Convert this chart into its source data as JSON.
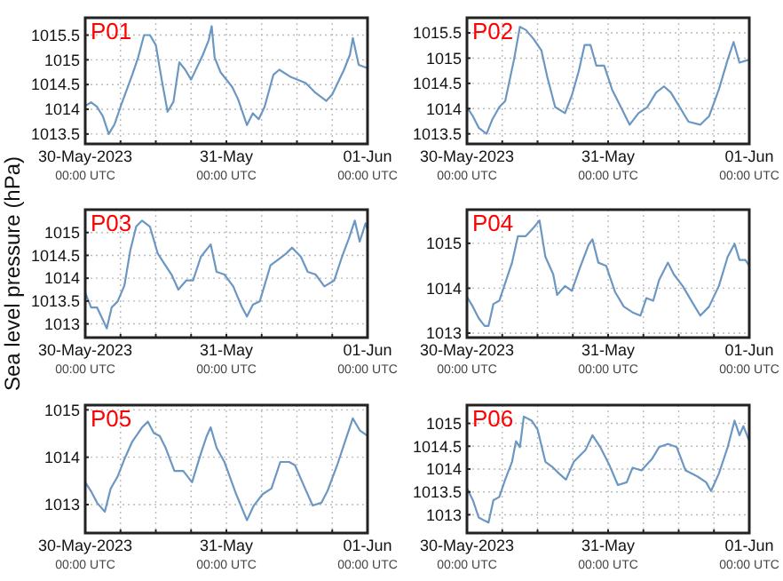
{
  "chart_data": [
    {
      "type": "line",
      "title": "P01",
      "grid": true,
      "xlim": [
        "2023-05-30T00:00",
        "2023-06-01T00:00"
      ],
      "xticks": [
        {
          "value": "2023-05-30T00:00",
          "label": "30-May-2023\n00:00 UTC"
        },
        {
          "value": "2023-05-30T06:00",
          "label": null
        },
        {
          "value": "2023-05-30T12:00",
          "label": null
        },
        {
          "value": "2023-05-30T18:00",
          "label": null
        },
        {
          "value": "2023-05-31T00:00",
          "label": "31-May\n00:00 UTC"
        },
        {
          "value": "2023-05-31T06:00",
          "label": null
        },
        {
          "value": "2023-05-31T12:00",
          "label": null
        },
        {
          "value": "2023-05-31T18:00",
          "label": null
        },
        {
          "value": "2023-06-01T00:00",
          "label": "01-Jun\n00:00 UTC"
        }
      ],
      "ylim": [
        1013.3,
        1015.85
      ],
      "yticks": [
        1013.5,
        1014,
        1014.5,
        1015,
        1015.5
      ],
      "series": [
        {
          "color": "#6b97c2",
          "x": [
            "2023-05-30T00:00",
            "2023-05-30T01:00",
            "2023-05-30T02:00",
            "2023-05-30T03:00",
            "2023-05-30T04:00",
            "2023-05-30T05:00",
            "2023-05-30T06:00",
            "2023-05-30T08:00",
            "2023-05-30T09:00",
            "2023-05-30T10:00",
            "2023-05-30T11:00",
            "2023-05-30T12:00",
            "2023-05-30T13:00",
            "2023-05-30T14:00",
            "2023-05-30T15:00",
            "2023-05-30T16:00",
            "2023-05-30T17:00",
            "2023-05-30T18:00",
            "2023-05-30T20:00",
            "2023-05-30T21:00",
            "2023-05-30T21:30",
            "2023-05-30T22:00",
            "2023-05-30T23:00",
            "2023-05-31T01:00",
            "2023-05-31T02:00",
            "2023-05-31T03:30",
            "2023-05-31T04:30",
            "2023-05-31T05:30",
            "2023-05-31T06:30",
            "2023-05-31T08:00",
            "2023-05-31T09:00",
            "2023-05-31T11:00",
            "2023-05-31T13:30",
            "2023-05-31T15:00",
            "2023-05-31T17:00",
            "2023-05-31T18:00",
            "2023-05-31T20:00",
            "2023-05-31T21:00",
            "2023-05-31T21:30",
            "2023-05-31T22:30",
            "2023-06-01T00:00"
          ],
          "values": [
            1014.07,
            1014.14,
            1014.05,
            1013.86,
            1013.5,
            1013.7,
            1014.05,
            1014.7,
            1015.05,
            1015.5,
            1015.5,
            1015.3,
            1014.6,
            1013.95,
            1014.15,
            1014.95,
            1014.8,
            1014.6,
            1015.1,
            1015.4,
            1015.68,
            1015.05,
            1014.75,
            1014.45,
            1014.2,
            1013.68,
            1013.92,
            1013.8,
            1014.05,
            1014.7,
            1014.8,
            1014.65,
            1014.53,
            1014.35,
            1014.17,
            1014.3,
            1014.8,
            1015.1,
            1015.44,
            1014.9,
            1014.83
          ]
        }
      ]
    },
    {
      "type": "line",
      "title": "P02",
      "grid": true,
      "xlim": [
        "2023-05-30T00:00",
        "2023-06-01T00:00"
      ],
      "xticks": [
        {
          "value": "2023-05-30T00:00",
          "label": "30-May-2023\n00:00 UTC"
        },
        {
          "value": "2023-05-30T06:00",
          "label": null
        },
        {
          "value": "2023-05-30T12:00",
          "label": null
        },
        {
          "value": "2023-05-30T18:00",
          "label": null
        },
        {
          "value": "2023-05-31T00:00",
          "label": "31-May\n00:00 UTC"
        },
        {
          "value": "2023-05-31T06:00",
          "label": null
        },
        {
          "value": "2023-05-31T12:00",
          "label": null
        },
        {
          "value": "2023-05-31T18:00",
          "label": null
        },
        {
          "value": "2023-06-01T00:00",
          "label": "01-Jun\n00:00 UTC"
        }
      ],
      "ylim": [
        1013.3,
        1015.8
      ],
      "yticks": [
        1013.5,
        1014,
        1014.5,
        1015,
        1015.5
      ],
      "series": [
        {
          "color": "#6b97c2",
          "x": [
            "2023-05-30T00:00",
            "2023-05-30T01:00",
            "2023-05-30T02:00",
            "2023-05-30T03:20",
            "2023-05-30T04:20",
            "2023-05-30T05:30",
            "2023-05-30T06:30",
            "2023-05-30T08:00",
            "2023-05-30T09:00",
            "2023-05-30T10:00",
            "2023-05-30T11:20",
            "2023-05-30T12:40",
            "2023-05-30T13:40",
            "2023-05-30T15:00",
            "2023-05-30T16:40",
            "2023-05-30T17:50",
            "2023-05-30T19:00",
            "2023-05-30T20:00",
            "2023-05-30T21:00",
            "2023-05-30T22:00",
            "2023-05-30T23:20",
            "2023-05-31T00:40",
            "2023-05-31T02:10",
            "2023-05-31T03:40",
            "2023-05-31T05:10",
            "2023-05-31T06:40",
            "2023-05-31T08:10",
            "2023-05-31T09:30",
            "2023-05-31T10:40",
            "2023-05-31T12:10",
            "2023-05-31T13:40",
            "2023-05-31T15:40",
            "2023-05-31T17:10",
            "2023-05-31T18:50",
            "2023-05-31T20:20",
            "2023-05-31T21:20",
            "2023-05-31T22:20",
            "2023-06-01T00:00"
          ],
          "values": [
            1014.03,
            1013.85,
            1013.62,
            1013.5,
            1013.79,
            1014.03,
            1014.15,
            1014.97,
            1015.62,
            1015.56,
            1015.38,
            1015.15,
            1014.62,
            1014.03,
            1013.91,
            1014.26,
            1014.74,
            1015.26,
            1015.26,
            1014.85,
            1014.85,
            1014.38,
            1014.03,
            1013.68,
            1013.91,
            1014.03,
            1014.32,
            1014.44,
            1014.32,
            1014.03,
            1013.74,
            1013.68,
            1013.85,
            1014.38,
            1014.97,
            1015.32,
            1014.91,
            1014.97
          ]
        }
      ]
    },
    {
      "type": "line",
      "title": "P03",
      "ylabel": "Sea level pressure (hPa)",
      "grid": true,
      "xlim": [
        "2023-05-30T00:00",
        "2023-06-01T00:00"
      ],
      "xticks": [
        {
          "value": "2023-05-30T00:00",
          "label": "30-May-2023\n00:00 UTC"
        },
        {
          "value": "2023-05-30T06:00",
          "label": null
        },
        {
          "value": "2023-05-30T12:00",
          "label": null
        },
        {
          "value": "2023-05-30T18:00",
          "label": null
        },
        {
          "value": "2023-05-31T00:00",
          "label": "31-May\n00:00 UTC"
        },
        {
          "value": "2023-05-31T06:00",
          "label": null
        },
        {
          "value": "2023-05-31T12:00",
          "label": null
        },
        {
          "value": "2023-05-31T18:00",
          "label": null
        },
        {
          "value": "2023-06-01T00:00",
          "label": "01-Jun\n00:00 UTC"
        }
      ],
      "ylim": [
        1012.7,
        1015.5
      ],
      "yticks": [
        1013,
        1013.5,
        1014,
        1014.5,
        1015
      ],
      "series": [
        {
          "color": "#6b97c2",
          "x": [
            "2023-05-30T00:00",
            "2023-05-30T01:00",
            "2023-05-30T02:00",
            "2023-05-30T03:00",
            "2023-05-30T03:40",
            "2023-05-30T04:30",
            "2023-05-30T05:30",
            "2023-05-30T06:40",
            "2023-05-30T07:40",
            "2023-05-30T08:40",
            "2023-05-30T09:40",
            "2023-05-30T11:00",
            "2023-05-30T12:20",
            "2023-05-30T13:20",
            "2023-05-30T14:40",
            "2023-05-30T15:50",
            "2023-05-30T17:10",
            "2023-05-30T18:20",
            "2023-05-30T19:40",
            "2023-05-30T21:20",
            "2023-05-30T22:20",
            "2023-05-30T23:40",
            "2023-05-31T01:10",
            "2023-05-31T02:40",
            "2023-05-31T03:30",
            "2023-05-31T04:30",
            "2023-05-31T05:40",
            "2023-05-31T07:30",
            "2023-05-31T08:50",
            "2023-05-31T10:10",
            "2023-05-31T11:10",
            "2023-05-31T12:40",
            "2023-05-31T13:50",
            "2023-05-31T15:10",
            "2023-05-31T16:40",
            "2023-05-31T18:20",
            "2023-05-31T19:40",
            "2023-05-31T20:50",
            "2023-05-31T21:50",
            "2023-05-31T22:40",
            "2023-05-31T23:40",
            "2023-06-01T00:00"
          ],
          "values": [
            1013.68,
            1013.36,
            1013.36,
            1013.09,
            1012.9,
            1013.36,
            1013.49,
            1013.84,
            1014.61,
            1015.13,
            1015.26,
            1015.13,
            1014.54,
            1014.34,
            1014.08,
            1013.75,
            1013.95,
            1013.95,
            1014.47,
            1014.74,
            1014.14,
            1014.08,
            1013.82,
            1013.36,
            1013.16,
            1013.42,
            1013.49,
            1014.28,
            1014.41,
            1014.54,
            1014.67,
            1014.47,
            1014.14,
            1014.08,
            1013.82,
            1013.95,
            1014.47,
            1014.87,
            1015.26,
            1014.8,
            1015.2,
            1015.07
          ]
        }
      ]
    },
    {
      "type": "line",
      "title": "P04",
      "grid": true,
      "xlim": [
        "2023-05-30T00:00",
        "2023-06-01T00:00"
      ],
      "xticks": [
        {
          "value": "2023-05-30T00:00",
          "label": "30-May-2023\n00:00 UTC"
        },
        {
          "value": "2023-05-30T06:00",
          "label": null
        },
        {
          "value": "2023-05-30T12:00",
          "label": null
        },
        {
          "value": "2023-05-30T18:00",
          "label": null
        },
        {
          "value": "2023-05-31T00:00",
          "label": "31-May\n00:00 UTC"
        },
        {
          "value": "2023-05-31T06:00",
          "label": null
        },
        {
          "value": "2023-05-31T12:00",
          "label": null
        },
        {
          "value": "2023-05-31T18:00",
          "label": null
        },
        {
          "value": "2023-06-01T00:00",
          "label": "01-Jun\n00:00 UTC"
        }
      ],
      "ylim": [
        1012.9,
        1015.75
      ],
      "yticks": [
        1013,
        1014,
        1015
      ],
      "series": [
        {
          "color": "#6b97c2",
          "x": [
            "2023-05-30T00:00",
            "2023-05-30T01:00",
            "2023-05-30T02:00",
            "2023-05-30T03:00",
            "2023-05-30T03:40",
            "2023-05-30T04:30",
            "2023-05-30T05:30",
            "2023-05-30T06:40",
            "2023-05-30T07:40",
            "2023-05-30T08:40",
            "2023-05-30T10:00",
            "2023-05-30T11:20",
            "2023-05-30T12:20",
            "2023-05-30T13:20",
            "2023-05-30T14:40",
            "2023-05-30T15:20",
            "2023-05-30T16:40",
            "2023-05-30T17:50",
            "2023-05-30T19:10",
            "2023-05-30T20:40",
            "2023-05-30T21:20",
            "2023-05-30T22:20",
            "2023-05-30T23:40",
            "2023-05-31T01:10",
            "2023-05-31T02:40",
            "2023-05-31T04:10",
            "2023-05-31T05:30",
            "2023-05-31T06:30",
            "2023-05-31T07:40",
            "2023-05-31T08:40",
            "2023-05-31T10:10",
            "2023-05-31T11:10",
            "2023-05-31T12:40",
            "2023-05-31T14:10",
            "2023-05-31T15:40",
            "2023-05-31T17:10",
            "2023-05-31T18:50",
            "2023-05-31T20:20",
            "2023-05-31T21:30",
            "2023-05-31T22:20",
            "2023-05-31T23:20",
            "2023-06-01T00:00"
          ],
          "values": [
            1013.81,
            1013.59,
            1013.33,
            1013.16,
            1013.16,
            1013.65,
            1013.72,
            1014.18,
            1014.57,
            1015.16,
            1015.16,
            1015.35,
            1015.51,
            1014.7,
            1014.31,
            1013.85,
            1014.05,
            1013.94,
            1014.44,
            1014.96,
            1015.09,
            1014.57,
            1014.5,
            1013.92,
            1013.59,
            1013.46,
            1013.39,
            1013.78,
            1013.72,
            1014.18,
            1014.57,
            1014.31,
            1014.05,
            1013.72,
            1013.39,
            1013.59,
            1014.05,
            1014.7,
            1014.99,
            1014.63,
            1014.63,
            1014.5
          ]
        }
      ]
    },
    {
      "type": "line",
      "title": "P05",
      "grid": true,
      "xlim": [
        "2023-05-30T00:00",
        "2023-06-01T00:00"
      ],
      "xticks": [
        {
          "value": "2023-05-30T00:00",
          "label": "30-May-2023\n00:00 UTC"
        },
        {
          "value": "2023-05-30T06:00",
          "label": null
        },
        {
          "value": "2023-05-30T12:00",
          "label": null
        },
        {
          "value": "2023-05-30T18:00",
          "label": null
        },
        {
          "value": "2023-05-31T00:00",
          "label": "31-May\n00:00 UTC"
        },
        {
          "value": "2023-05-31T06:00",
          "label": null
        },
        {
          "value": "2023-05-31T12:00",
          "label": null
        },
        {
          "value": "2023-05-31T18:00",
          "label": null
        },
        {
          "value": "2023-06-01T00:00",
          "label": "01-Jun\n00:00 UTC"
        }
      ],
      "ylim": [
        1012.4,
        1015.1
      ],
      "yticks": [
        1013,
        1014,
        1015
      ],
      "series": [
        {
          "color": "#6b97c2",
          "x": [
            "2023-05-30T00:00",
            "2023-05-30T01:00",
            "2023-05-30T02:00",
            "2023-05-30T03:20",
            "2023-05-30T04:20",
            "2023-05-30T05:30",
            "2023-05-30T06:40",
            "2023-05-30T08:00",
            "2023-05-30T09:40",
            "2023-05-30T10:40",
            "2023-05-30T11:40",
            "2023-05-30T12:40",
            "2023-05-30T13:40",
            "2023-05-30T15:10",
            "2023-05-30T16:40",
            "2023-05-30T18:10",
            "2023-05-30T19:40",
            "2023-05-30T20:40",
            "2023-05-30T21:20",
            "2023-05-30T22:20",
            "2023-05-30T23:40",
            "2023-05-31T01:40",
            "2023-05-31T03:30",
            "2023-05-31T04:40",
            "2023-05-31T06:10",
            "2023-05-31T07:40",
            "2023-05-31T09:10",
            "2023-05-31T10:40",
            "2023-05-31T11:40",
            "2023-05-31T13:10",
            "2023-05-31T14:40",
            "2023-05-31T16:10",
            "2023-05-31T17:10",
            "2023-05-31T18:50",
            "2023-05-31T20:20",
            "2023-05-31T21:30",
            "2023-05-31T22:40",
            "2023-06-01T00:00"
          ],
          "values": [
            1013.47,
            1013.28,
            1013.04,
            1012.85,
            1013.34,
            1013.59,
            1013.96,
            1014.33,
            1014.63,
            1014.75,
            1014.51,
            1014.45,
            1014.2,
            1013.71,
            1013.71,
            1013.47,
            1014.08,
            1014.45,
            1014.63,
            1014.2,
            1013.9,
            1013.22,
            1012.67,
            1012.98,
            1013.22,
            1013.34,
            1013.9,
            1013.9,
            1013.83,
            1013.4,
            1012.98,
            1013.04,
            1013.28,
            1013.83,
            1014.39,
            1014.82,
            1014.57,
            1014.45
          ]
        }
      ]
    },
    {
      "type": "line",
      "title": "P06",
      "grid": true,
      "xlim": [
        "2023-05-30T00:00",
        "2023-06-01T00:00"
      ],
      "xticks": [
        {
          "value": "2023-05-30T00:00",
          "label": "30-May-2023\n00:00 UTC"
        },
        {
          "value": "2023-05-30T06:00",
          "label": null
        },
        {
          "value": "2023-05-30T12:00",
          "label": null
        },
        {
          "value": "2023-05-30T18:00",
          "label": null
        },
        {
          "value": "2023-05-31T00:00",
          "label": "31-May\n00:00 UTC"
        },
        {
          "value": "2023-05-31T06:00",
          "label": null
        },
        {
          "value": "2023-05-31T12:00",
          "label": null
        },
        {
          "value": "2023-05-31T18:00",
          "label": null
        },
        {
          "value": "2023-06-01T00:00",
          "label": "01-Jun\n00:00 UTC"
        }
      ],
      "ylim": [
        1012.6,
        1015.4
      ],
      "yticks": [
        1013,
        1013.5,
        1014,
        1014.5,
        1015
      ],
      "series": [
        {
          "color": "#6b97c2",
          "x": [
            "2023-05-30T00:00",
            "2023-05-30T01:00",
            "2023-05-30T02:00",
            "2023-05-30T03:00",
            "2023-05-30T03:40",
            "2023-05-30T04:30",
            "2023-05-30T05:30",
            "2023-05-30T06:30",
            "2023-05-30T07:40",
            "2023-05-30T08:20",
            "2023-05-30T09:00",
            "2023-05-30T09:40",
            "2023-05-30T11:00",
            "2023-05-30T12:00",
            "2023-05-30T13:20",
            "2023-05-30T14:40",
            "2023-05-30T15:40",
            "2023-05-30T16:50",
            "2023-05-30T18:10",
            "2023-05-30T20:10",
            "2023-05-30T21:20",
            "2023-05-30T22:40",
            "2023-05-31T00:10",
            "2023-05-31T01:40",
            "2023-05-31T03:10",
            "2023-05-31T04:10",
            "2023-05-31T05:40",
            "2023-05-31T07:30",
            "2023-05-31T08:40",
            "2023-05-31T10:10",
            "2023-05-31T11:40",
            "2023-05-31T13:10",
            "2023-05-31T15:10",
            "2023-05-31T16:40",
            "2023-05-31T17:30",
            "2023-05-31T18:50",
            "2023-05-31T20:20",
            "2023-05-31T21:30",
            "2023-05-31T22:20",
            "2023-05-31T23:00",
            "2023-06-01T00:00"
          ],
          "values": [
            1013.58,
            1013.32,
            1012.94,
            1012.87,
            1012.83,
            1013.32,
            1013.39,
            1013.77,
            1014.16,
            1014.61,
            1014.48,
            1015.15,
            1015.06,
            1014.87,
            1014.16,
            1014.03,
            1013.9,
            1013.77,
            1014.16,
            1014.42,
            1014.74,
            1014.48,
            1014.1,
            1013.65,
            1013.71,
            1014.03,
            1013.97,
            1014.23,
            1014.48,
            1014.55,
            1014.48,
            1013.97,
            1013.84,
            1013.71,
            1013.52,
            1013.9,
            1014.48,
            1015.06,
            1014.74,
            1014.94,
            1014.61
          ]
        }
      ]
    }
  ]
}
